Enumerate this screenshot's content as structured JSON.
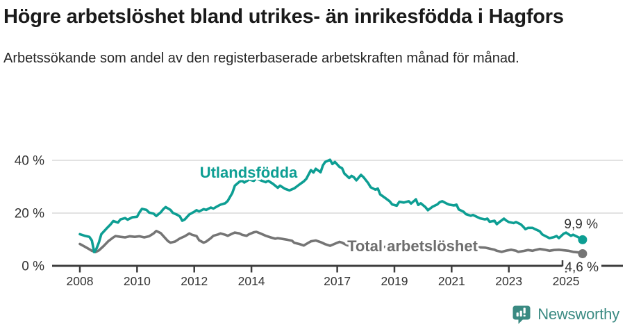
{
  "header": {
    "title": "Högre arbetslöshet bland utrikes- än inrikesfödda i Hagfors",
    "subtitle": "Arbetssökande som andel av den registerbaserade arbetskraften månad för månad."
  },
  "footer": {
    "brand": "Newsworthy"
  },
  "colors": {
    "accent_teal": "#0d9e93",
    "series_gray": "#757575",
    "label_gray": "#6e6e6e",
    "brand_teal": "#3a8a82",
    "axis": "#3d3d3d",
    "grid": "#d9d9d9",
    "tick_text": "#333333",
    "annotation_text": "#2e2e2e"
  },
  "chart_data": {
    "type": "line",
    "title": "Högre arbetslöshet bland utrikes- än inrikesfödda i Hagfors",
    "subtitle": "Arbetssökande som andel av den registerbaserade arbetskraften månad för månad.",
    "unit": "%",
    "xlim": [
      2007.85,
      2026.0
    ],
    "ylim": [
      0,
      42
    ],
    "grid": true,
    "x_ticks": [
      {
        "value": 2008,
        "label": "2008"
      },
      {
        "value": 2010,
        "label": "2010"
      },
      {
        "value": 2012,
        "label": "2012"
      },
      {
        "value": 2014,
        "label": "2014"
      },
      {
        "value": 2017,
        "label": "2017"
      },
      {
        "value": 2019,
        "label": "2019"
      },
      {
        "value": 2021,
        "label": "2021"
      },
      {
        "value": 2023,
        "label": "2023"
      },
      {
        "value": 2025,
        "label": "2025"
      }
    ],
    "y_ticks": [
      {
        "value": 0,
        "label": "0 %"
      },
      {
        "value": 20,
        "label": "20 %"
      },
      {
        "value": 40,
        "label": "40 %"
      }
    ],
    "series": [
      {
        "name": "Utlandsfödda",
        "slug": "utlandsfodda",
        "color_key": "accent_teal",
        "end_label": "9,9 %",
        "end_value": 9.9,
        "points": [
          [
            2008.0,
            12.0
          ],
          [
            2008.17,
            11.4
          ],
          [
            2008.33,
            11.0
          ],
          [
            2008.42,
            9.6
          ],
          [
            2008.5,
            5.2
          ],
          [
            2008.58,
            6.5
          ],
          [
            2008.67,
            9.0
          ],
          [
            2008.75,
            12.0
          ],
          [
            2008.92,
            14.0
          ],
          [
            2009.08,
            15.8
          ],
          [
            2009.17,
            17.0
          ],
          [
            2009.33,
            16.4
          ],
          [
            2009.42,
            17.6
          ],
          [
            2009.58,
            18.1
          ],
          [
            2009.67,
            17.5
          ],
          [
            2009.83,
            18.4
          ],
          [
            2010.0,
            18.6
          ],
          [
            2010.08,
            20.2
          ],
          [
            2010.17,
            21.6
          ],
          [
            2010.33,
            21.2
          ],
          [
            2010.42,
            20.2
          ],
          [
            2010.58,
            19.8
          ],
          [
            2010.67,
            18.9
          ],
          [
            2010.83,
            20.3
          ],
          [
            2010.92,
            21.5
          ],
          [
            2011.0,
            22.3
          ],
          [
            2011.17,
            21.2
          ],
          [
            2011.25,
            20.1
          ],
          [
            2011.42,
            19.3
          ],
          [
            2011.5,
            18.7
          ],
          [
            2011.58,
            17.1
          ],
          [
            2011.67,
            17.6
          ],
          [
            2011.83,
            19.5
          ],
          [
            2012.0,
            20.5
          ],
          [
            2012.08,
            21.1
          ],
          [
            2012.17,
            20.6
          ],
          [
            2012.33,
            21.5
          ],
          [
            2012.42,
            21.2
          ],
          [
            2012.58,
            22.1
          ],
          [
            2012.67,
            21.7
          ],
          [
            2012.83,
            22.7
          ],
          [
            2012.92,
            23.2
          ],
          [
            2013.08,
            23.7
          ],
          [
            2013.17,
            24.6
          ],
          [
            2013.25,
            26.1
          ],
          [
            2013.33,
            27.6
          ],
          [
            2013.42,
            30.4
          ],
          [
            2013.58,
            31.9
          ],
          [
            2013.67,
            32.3
          ],
          [
            2013.75,
            31.6
          ],
          [
            2013.92,
            32.7
          ],
          [
            2014.08,
            32.2
          ],
          [
            2014.17,
            33.1
          ],
          [
            2014.33,
            32.4
          ],
          [
            2014.5,
            31.7
          ],
          [
            2014.58,
            32.3
          ],
          [
            2014.75,
            31.1
          ],
          [
            2014.92,
            29.6
          ],
          [
            2015.0,
            30.4
          ],
          [
            2015.17,
            29.2
          ],
          [
            2015.33,
            28.6
          ],
          [
            2015.5,
            29.4
          ],
          [
            2015.67,
            30.8
          ],
          [
            2015.83,
            32.0
          ],
          [
            2015.92,
            33.0
          ],
          [
            2016.08,
            36.3
          ],
          [
            2016.17,
            35.4
          ],
          [
            2016.25,
            36.8
          ],
          [
            2016.42,
            35.5
          ],
          [
            2016.5,
            38.1
          ],
          [
            2016.58,
            39.4
          ],
          [
            2016.75,
            40.2
          ],
          [
            2016.83,
            38.6
          ],
          [
            2016.92,
            39.4
          ],
          [
            2017.08,
            37.5
          ],
          [
            2017.17,
            37.0
          ],
          [
            2017.25,
            35.0
          ],
          [
            2017.42,
            33.3
          ],
          [
            2017.5,
            34.1
          ],
          [
            2017.58,
            33.6
          ],
          [
            2017.67,
            32.4
          ],
          [
            2017.83,
            34.5
          ],
          [
            2017.92,
            33.6
          ],
          [
            2018.08,
            31.4
          ],
          [
            2018.17,
            29.8
          ],
          [
            2018.33,
            28.9
          ],
          [
            2018.42,
            29.3
          ],
          [
            2018.5,
            27.1
          ],
          [
            2018.67,
            25.8
          ],
          [
            2018.83,
            24.5
          ],
          [
            2018.92,
            23.3
          ],
          [
            2019.08,
            22.8
          ],
          [
            2019.17,
            24.3
          ],
          [
            2019.33,
            24.0
          ],
          [
            2019.5,
            24.5
          ],
          [
            2019.58,
            23.6
          ],
          [
            2019.75,
            25.2
          ],
          [
            2019.83,
            23.1
          ],
          [
            2019.92,
            23.7
          ],
          [
            2020.08,
            22.3
          ],
          [
            2020.17,
            21.1
          ],
          [
            2020.33,
            22.4
          ],
          [
            2020.5,
            23.3
          ],
          [
            2020.58,
            24.1
          ],
          [
            2020.67,
            24.5
          ],
          [
            2020.83,
            23.6
          ],
          [
            2020.92,
            23.2
          ],
          [
            2021.08,
            22.9
          ],
          [
            2021.17,
            23.2
          ],
          [
            2021.25,
            21.4
          ],
          [
            2021.42,
            20.5
          ],
          [
            2021.5,
            19.6
          ],
          [
            2021.67,
            19.0
          ],
          [
            2021.75,
            19.3
          ],
          [
            2021.92,
            18.4
          ],
          [
            2022.0,
            18.0
          ],
          [
            2022.17,
            17.6
          ],
          [
            2022.25,
            17.9
          ],
          [
            2022.33,
            16.7
          ],
          [
            2022.5,
            17.1
          ],
          [
            2022.58,
            15.8
          ],
          [
            2022.67,
            16.6
          ],
          [
            2022.83,
            17.9
          ],
          [
            2022.92,
            17.1
          ],
          [
            2023.0,
            16.6
          ],
          [
            2023.17,
            16.2
          ],
          [
            2023.25,
            16.6
          ],
          [
            2023.42,
            15.7
          ],
          [
            2023.5,
            14.9
          ],
          [
            2023.58,
            13.9
          ],
          [
            2023.67,
            14.4
          ],
          [
            2023.83,
            14.4
          ],
          [
            2023.92,
            13.9
          ],
          [
            2024.08,
            13.1
          ],
          [
            2024.17,
            11.9
          ],
          [
            2024.33,
            11.0
          ],
          [
            2024.42,
            10.5
          ],
          [
            2024.58,
            10.9
          ],
          [
            2024.67,
            11.3
          ],
          [
            2024.75,
            10.5
          ],
          [
            2024.92,
            12.2
          ],
          [
            2025.0,
            12.6
          ],
          [
            2025.17,
            11.4
          ],
          [
            2025.25,
            11.8
          ],
          [
            2025.42,
            10.9
          ],
          [
            2025.5,
            10.3
          ],
          [
            2025.58,
            9.9
          ]
        ]
      },
      {
        "name": "Total arbetslöshet",
        "slug": "total-arbetsloshet",
        "color_key": "series_gray",
        "label_color_key": "label_gray",
        "end_label": "4,6 %",
        "end_value": 4.6,
        "points": [
          [
            2008.0,
            8.3
          ],
          [
            2008.17,
            7.3
          ],
          [
            2008.33,
            6.3
          ],
          [
            2008.42,
            5.7
          ],
          [
            2008.55,
            5.2
          ],
          [
            2008.67,
            5.9
          ],
          [
            2008.83,
            7.5
          ],
          [
            2009.0,
            9.4
          ],
          [
            2009.17,
            10.8
          ],
          [
            2009.25,
            11.3
          ],
          [
            2009.42,
            11.0
          ],
          [
            2009.58,
            10.8
          ],
          [
            2009.75,
            11.2
          ],
          [
            2009.92,
            11.0
          ],
          [
            2010.08,
            11.2
          ],
          [
            2010.25,
            10.8
          ],
          [
            2010.42,
            11.2
          ],
          [
            2010.58,
            12.3
          ],
          [
            2010.67,
            13.2
          ],
          [
            2010.83,
            12.4
          ],
          [
            2010.92,
            11.3
          ],
          [
            2011.08,
            9.4
          ],
          [
            2011.17,
            8.8
          ],
          [
            2011.33,
            9.2
          ],
          [
            2011.5,
            10.4
          ],
          [
            2011.67,
            11.2
          ],
          [
            2011.83,
            12.3
          ],
          [
            2011.92,
            11.8
          ],
          [
            2012.08,
            11.3
          ],
          [
            2012.17,
            9.7
          ],
          [
            2012.33,
            8.8
          ],
          [
            2012.42,
            9.2
          ],
          [
            2012.58,
            10.5
          ],
          [
            2012.67,
            11.4
          ],
          [
            2012.83,
            11.9
          ],
          [
            2012.92,
            12.3
          ],
          [
            2013.08,
            11.8
          ],
          [
            2013.17,
            11.4
          ],
          [
            2013.33,
            12.2
          ],
          [
            2013.42,
            12.6
          ],
          [
            2013.58,
            12.3
          ],
          [
            2013.67,
            11.8
          ],
          [
            2013.83,
            11.4
          ],
          [
            2013.92,
            12.0
          ],
          [
            2014.08,
            12.7
          ],
          [
            2014.17,
            12.9
          ],
          [
            2014.33,
            12.2
          ],
          [
            2014.5,
            11.4
          ],
          [
            2014.67,
            10.8
          ],
          [
            2014.83,
            10.3
          ],
          [
            2014.92,
            10.5
          ],
          [
            2015.08,
            10.2
          ],
          [
            2015.25,
            9.9
          ],
          [
            2015.42,
            9.5
          ],
          [
            2015.5,
            8.7
          ],
          [
            2015.67,
            8.3
          ],
          [
            2015.83,
            7.7
          ],
          [
            2015.92,
            8.3
          ],
          [
            2016.08,
            9.3
          ],
          [
            2016.25,
            9.6
          ],
          [
            2016.42,
            9.0
          ],
          [
            2016.58,
            8.2
          ],
          [
            2016.75,
            7.6
          ],
          [
            2016.92,
            8.4
          ],
          [
            2017.08,
            9.1
          ],
          [
            2017.17,
            8.8
          ],
          [
            2017.33,
            7.9
          ],
          [
            2017.5,
            7.4
          ],
          [
            2017.67,
            7.4
          ],
          [
            2017.83,
            7.7
          ],
          [
            2018.0,
            7.9
          ],
          [
            2018.17,
            7.6
          ],
          [
            2018.33,
            7.3
          ],
          [
            2018.5,
            7.0
          ],
          [
            2018.67,
            7.2
          ],
          [
            2018.83,
            7.4
          ],
          [
            2019.0,
            7.5
          ],
          [
            2019.17,
            7.3
          ],
          [
            2019.33,
            7.1
          ],
          [
            2019.5,
            7.0
          ],
          [
            2019.67,
            7.2
          ],
          [
            2019.83,
            7.4
          ],
          [
            2020.0,
            7.7
          ],
          [
            2020.17,
            7.9
          ],
          [
            2020.33,
            8.2
          ],
          [
            2020.5,
            8.1
          ],
          [
            2020.67,
            8.0
          ],
          [
            2020.83,
            7.8
          ],
          [
            2021.0,
            7.6
          ],
          [
            2021.17,
            7.4
          ],
          [
            2021.33,
            7.2
          ],
          [
            2021.5,
            7.0
          ],
          [
            2021.67,
            6.9
          ],
          [
            2021.83,
            7.1
          ],
          [
            2022.0,
            7.0
          ],
          [
            2022.17,
            6.9
          ],
          [
            2022.33,
            6.5
          ],
          [
            2022.5,
            6.1
          ],
          [
            2022.58,
            5.7
          ],
          [
            2022.75,
            5.3
          ],
          [
            2022.92,
            5.8
          ],
          [
            2023.08,
            6.1
          ],
          [
            2023.25,
            5.7
          ],
          [
            2023.33,
            5.3
          ],
          [
            2023.5,
            5.6
          ],
          [
            2023.67,
            6.0
          ],
          [
            2023.83,
            5.7
          ],
          [
            2023.92,
            6.0
          ],
          [
            2024.08,
            6.4
          ],
          [
            2024.25,
            6.1
          ],
          [
            2024.42,
            5.7
          ],
          [
            2024.58,
            6.0
          ],
          [
            2024.75,
            6.1
          ],
          [
            2024.92,
            5.9
          ],
          [
            2025.08,
            5.7
          ],
          [
            2025.25,
            5.3
          ],
          [
            2025.42,
            5.1
          ],
          [
            2025.58,
            4.6
          ]
        ]
      }
    ]
  }
}
